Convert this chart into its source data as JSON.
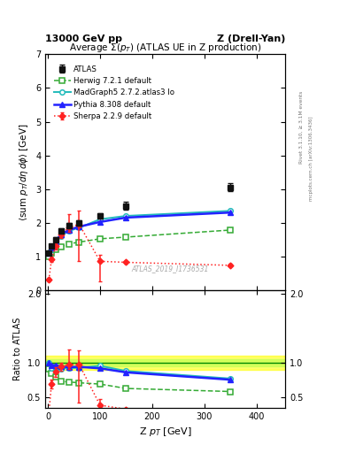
{
  "title_left": "13000 GeV pp",
  "title_right": "Z (Drell-Yan)",
  "plot_title": "Average Σ(p_T) (ATLAS UE in Z production)",
  "xlabel": "Z p$_T$ [GeV]",
  "ylabel_main": "<sum p$_T$/dη dφ> [GeV]",
  "ylabel_ratio": "Ratio to ATLAS",
  "watermark": "ATLAS_2019_I1736531",
  "rivet_label": "Rivet 3.1.10, ≥ 3.1M events",
  "arxiv_label": "mcplots.cern.ch [arXiv:1306.3436]",
  "atlas_x": [
    2,
    7,
    15,
    25,
    40,
    60,
    100,
    150,
    350
  ],
  "atlas_y": [
    1.1,
    1.3,
    1.5,
    1.75,
    1.9,
    2.0,
    2.2,
    2.5,
    3.05
  ],
  "atlas_yerr": [
    0.05,
    0.05,
    0.06,
    0.07,
    0.08,
    0.08,
    0.09,
    0.12,
    0.12
  ],
  "herwig_x": [
    2,
    7,
    15,
    25,
    40,
    60,
    100,
    150,
    350
  ],
  "herwig_y": [
    1.0,
    1.1,
    1.2,
    1.28,
    1.37,
    1.42,
    1.52,
    1.57,
    1.78
  ],
  "madgraph_x": [
    2,
    7,
    15,
    25,
    40,
    60,
    100,
    150,
    350
  ],
  "madgraph_y": [
    1.1,
    1.2,
    1.4,
    1.6,
    1.75,
    1.85,
    2.1,
    2.2,
    2.35
  ],
  "pythia_x": [
    2,
    7,
    15,
    25,
    40,
    60,
    100,
    150,
    350
  ],
  "pythia_y": [
    1.1,
    1.25,
    1.45,
    1.65,
    1.78,
    1.88,
    2.02,
    2.15,
    2.3
  ],
  "sherpa_x": [
    2,
    7,
    15,
    25,
    40,
    60,
    100,
    150,
    350
  ],
  "sherpa_y": [
    0.3,
    0.9,
    1.3,
    1.65,
    1.85,
    1.95,
    0.85,
    0.82,
    0.73
  ],
  "sherpa_yerr_hi": [
    0.05,
    0.08,
    0.1,
    0.1,
    0.4,
    0.4,
    0.2,
    0.04,
    0.04
  ],
  "sherpa_yerr_lo": [
    0.05,
    0.08,
    0.1,
    0.1,
    0.12,
    1.1,
    0.6,
    0.04,
    0.04
  ],
  "herwig_color": "#33aa33",
  "madgraph_color": "#22bbbb",
  "pythia_color": "#2222ff",
  "sherpa_color": "#ff2222",
  "atlas_color": "#111111",
  "main_ylim": [
    0,
    7
  ],
  "ratio_ylim": [
    0.35,
    2.05
  ],
  "ratio_yticks": [
    0.5,
    1.0,
    2.0
  ],
  "xlim": [
    -5,
    455
  ],
  "xticks": [
    0,
    100,
    200,
    300,
    400
  ]
}
